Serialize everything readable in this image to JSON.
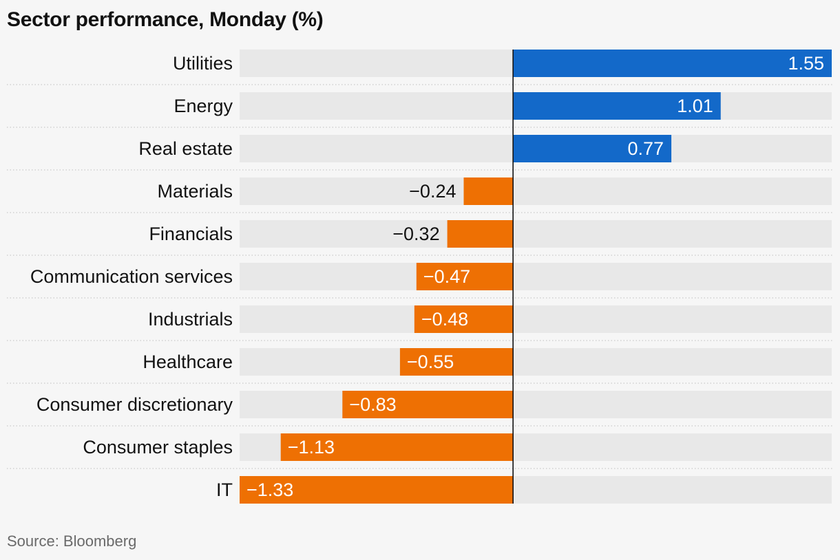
{
  "title": "Sector performance, Monday (%)",
  "source": "Source: Bloomberg",
  "colors": {
    "positive": "#1369c9",
    "negative": "#ee7003",
    "track": "#e8e8e8",
    "axis": "#121212",
    "separator": "#c9c9c9"
  },
  "chart_data": {
    "type": "bar",
    "orientation": "horizontal",
    "title": "Sector performance, Monday (%)",
    "categories": [
      "Utilities",
      "Energy",
      "Real estate",
      "Materials",
      "Financials",
      "Communication services",
      "Industrials",
      "Healthcare",
      "Consumer discretionary",
      "Consumer staples",
      "IT"
    ],
    "values": [
      1.55,
      1.01,
      0.77,
      -0.24,
      -0.32,
      -0.47,
      -0.48,
      -0.55,
      -0.83,
      -1.13,
      -1.33
    ],
    "labels": [
      "1.55",
      "1.01",
      "0.77",
      "−0.24",
      "−0.32",
      "−0.47",
      "−0.48",
      "−0.55",
      "−0.83",
      "−1.13",
      "−1.33"
    ],
    "xlim": [
      -1.33,
      1.55
    ],
    "grid": false,
    "legend": "none",
    "source": "Source: Bloomberg"
  }
}
